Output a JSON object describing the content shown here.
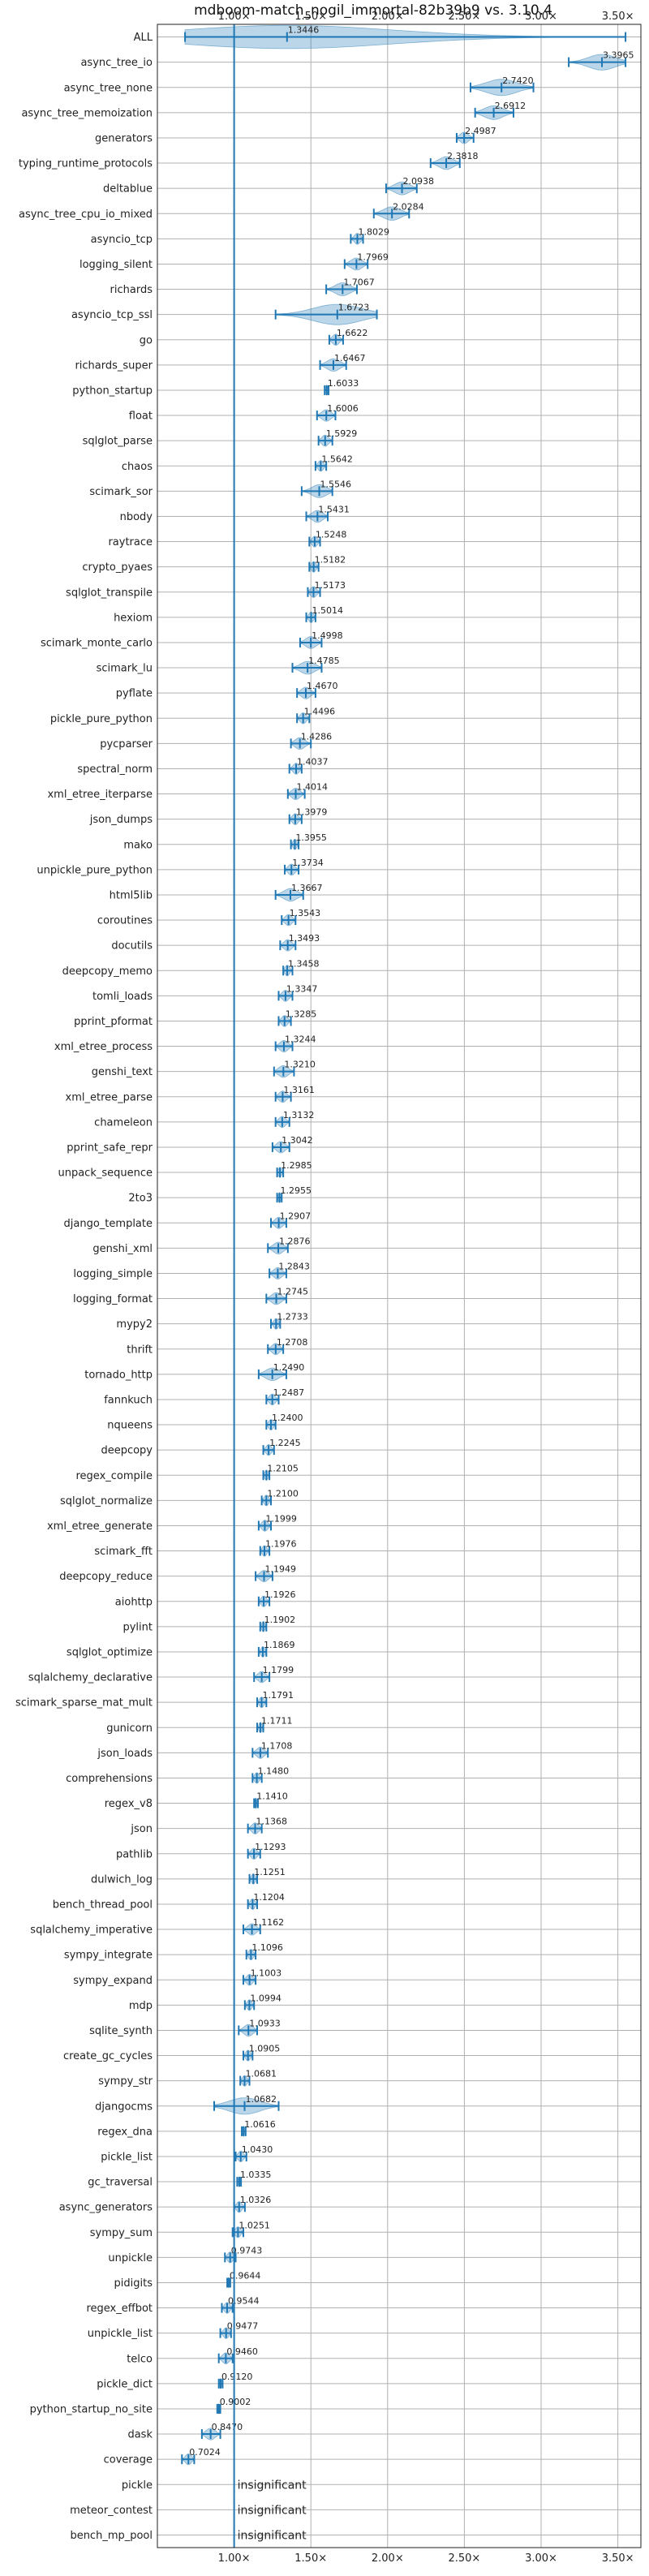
{
  "chart_data": {
    "type": "violin",
    "title": "mdboom-match_nogil_immortal-82b39b9 vs. 3.10.4",
    "xlim": [
      0.5,
      3.65
    ],
    "x_ticks": [
      1.0,
      1.5,
      2.0,
      2.5,
      3.0,
      3.5
    ],
    "x_tick_labels": [
      "1.00×",
      "1.50×",
      "2.00×",
      "2.50×",
      "3.00×",
      "3.50×"
    ],
    "reference_line": 1.0,
    "grid": true,
    "insignificant_label": "insignificant",
    "benchmarks": [
      {
        "name": "ALL",
        "value": 1.3446,
        "label": "1.3446",
        "min": 0.68,
        "max": 3.55
      },
      {
        "name": "async_tree_io",
        "value": 3.3965,
        "label": "3.3965",
        "min": 3.18,
        "max": 3.55
      },
      {
        "name": "async_tree_none",
        "value": 2.742,
        "label": "2.7420",
        "min": 2.54,
        "max": 2.95
      },
      {
        "name": "async_tree_memoization",
        "value": 2.6912,
        "label": "2.6912",
        "min": 2.57,
        "max": 2.82
      },
      {
        "name": "generators",
        "value": 2.4987,
        "label": "2.4987",
        "min": 2.45,
        "max": 2.56
      },
      {
        "name": "typing_runtime_protocols",
        "value": 2.3818,
        "label": "2.3818",
        "min": 2.28,
        "max": 2.47
      },
      {
        "name": "deltablue",
        "value": 2.0938,
        "label": "2.0938",
        "min": 1.99,
        "max": 2.19
      },
      {
        "name": "async_tree_cpu_io_mixed",
        "value": 2.0284,
        "label": "2.0284",
        "min": 1.91,
        "max": 2.14
      },
      {
        "name": "asyncio_tcp",
        "value": 1.8029,
        "label": "1.8029",
        "min": 1.76,
        "max": 1.84
      },
      {
        "name": "logging_silent",
        "value": 1.7969,
        "label": "1.7969",
        "min": 1.72,
        "max": 1.87
      },
      {
        "name": "richards",
        "value": 1.7067,
        "label": "1.7067",
        "min": 1.6,
        "max": 1.8
      },
      {
        "name": "asyncio_tcp_ssl",
        "value": 1.6723,
        "label": "1.6723",
        "min": 1.27,
        "max": 1.93
      },
      {
        "name": "go",
        "value": 1.6622,
        "label": "1.6622",
        "min": 1.62,
        "max": 1.71
      },
      {
        "name": "richards_super",
        "value": 1.6467,
        "label": "1.6467",
        "min": 1.56,
        "max": 1.73
      },
      {
        "name": "python_startup",
        "value": 1.6033,
        "label": "1.6033",
        "min": 1.59,
        "max": 1.615
      },
      {
        "name": "float",
        "value": 1.6006,
        "label": "1.6006",
        "min": 1.54,
        "max": 1.66
      },
      {
        "name": "sqlglot_parse",
        "value": 1.5929,
        "label": "1.5929",
        "min": 1.55,
        "max": 1.64
      },
      {
        "name": "chaos",
        "value": 1.5642,
        "label": "1.5642",
        "min": 1.53,
        "max": 1.6
      },
      {
        "name": "scimark_sor",
        "value": 1.5546,
        "label": "1.5546",
        "min": 1.44,
        "max": 1.64
      },
      {
        "name": "nbody",
        "value": 1.5431,
        "label": "1.5431",
        "min": 1.47,
        "max": 1.61
      },
      {
        "name": "raytrace",
        "value": 1.5248,
        "label": "1.5248",
        "min": 1.49,
        "max": 1.56
      },
      {
        "name": "crypto_pyaes",
        "value": 1.5182,
        "label": "1.5182",
        "min": 1.49,
        "max": 1.55
      },
      {
        "name": "sqlglot_transpile",
        "value": 1.5173,
        "label": "1.5173",
        "min": 1.48,
        "max": 1.56
      },
      {
        "name": "hexiom",
        "value": 1.5014,
        "label": "1.5014",
        "min": 1.47,
        "max": 1.53
      },
      {
        "name": "scimark_monte_carlo",
        "value": 1.4998,
        "label": "1.4998",
        "min": 1.43,
        "max": 1.57
      },
      {
        "name": "scimark_lu",
        "value": 1.4785,
        "label": "1.4785",
        "min": 1.38,
        "max": 1.57
      },
      {
        "name": "pyflate",
        "value": 1.467,
        "label": "1.4670",
        "min": 1.41,
        "max": 1.53
      },
      {
        "name": "pickle_pure_python",
        "value": 1.4496,
        "label": "1.4496",
        "min": 1.41,
        "max": 1.49
      },
      {
        "name": "pycparser",
        "value": 1.4286,
        "label": "1.4286",
        "min": 1.37,
        "max": 1.5
      },
      {
        "name": "spectral_norm",
        "value": 1.4037,
        "label": "1.4037",
        "min": 1.36,
        "max": 1.44
      },
      {
        "name": "xml_etree_iterparse",
        "value": 1.4014,
        "label": "1.4014",
        "min": 1.35,
        "max": 1.46
      },
      {
        "name": "json_dumps",
        "value": 1.3979,
        "label": "1.3979",
        "min": 1.36,
        "max": 1.44
      },
      {
        "name": "mako",
        "value": 1.3955,
        "label": "1.3955",
        "min": 1.37,
        "max": 1.42
      },
      {
        "name": "unpickle_pure_python",
        "value": 1.3734,
        "label": "1.3734",
        "min": 1.33,
        "max": 1.42
      },
      {
        "name": "html5lib",
        "value": 1.3667,
        "label": "1.3667",
        "min": 1.27,
        "max": 1.45
      },
      {
        "name": "coroutines",
        "value": 1.3543,
        "label": "1.3543",
        "min": 1.31,
        "max": 1.4
      },
      {
        "name": "docutils",
        "value": 1.3493,
        "label": "1.3493",
        "min": 1.3,
        "max": 1.4
      },
      {
        "name": "deepcopy_memo",
        "value": 1.3458,
        "label": "1.3458",
        "min": 1.32,
        "max": 1.38
      },
      {
        "name": "tomli_loads",
        "value": 1.3347,
        "label": "1.3347",
        "min": 1.29,
        "max": 1.38
      },
      {
        "name": "pprint_pformat",
        "value": 1.3285,
        "label": "1.3285",
        "min": 1.29,
        "max": 1.37
      },
      {
        "name": "xml_etree_process",
        "value": 1.3244,
        "label": "1.3244",
        "min": 1.27,
        "max": 1.38
      },
      {
        "name": "genshi_text",
        "value": 1.321,
        "label": "1.3210",
        "min": 1.26,
        "max": 1.39
      },
      {
        "name": "xml_etree_parse",
        "value": 1.3161,
        "label": "1.3161",
        "min": 1.27,
        "max": 1.37
      },
      {
        "name": "chameleon",
        "value": 1.3132,
        "label": "1.3132",
        "min": 1.27,
        "max": 1.36
      },
      {
        "name": "pprint_safe_repr",
        "value": 1.3042,
        "label": "1.3042",
        "min": 1.25,
        "max": 1.36
      },
      {
        "name": "unpack_sequence",
        "value": 1.2985,
        "label": "1.2985",
        "min": 1.28,
        "max": 1.32
      },
      {
        "name": "2to3",
        "value": 1.2955,
        "label": "1.2955",
        "min": 1.28,
        "max": 1.31
      },
      {
        "name": "django_template",
        "value": 1.2907,
        "label": "1.2907",
        "min": 1.24,
        "max": 1.34
      },
      {
        "name": "genshi_xml",
        "value": 1.2876,
        "label": "1.2876",
        "min": 1.22,
        "max": 1.35
      },
      {
        "name": "logging_simple",
        "value": 1.2843,
        "label": "1.2843",
        "min": 1.23,
        "max": 1.34
      },
      {
        "name": "logging_format",
        "value": 1.2745,
        "label": "1.2745",
        "min": 1.21,
        "max": 1.34
      },
      {
        "name": "mypy2",
        "value": 1.2733,
        "label": "1.2733",
        "min": 1.24,
        "max": 1.3
      },
      {
        "name": "thrift",
        "value": 1.2708,
        "label": "1.2708",
        "min": 1.22,
        "max": 1.32
      },
      {
        "name": "tornado_http",
        "value": 1.249,
        "label": "1.2490",
        "min": 1.16,
        "max": 1.34
      },
      {
        "name": "fannkuch",
        "value": 1.2487,
        "label": "1.2487",
        "min": 1.21,
        "max": 1.29
      },
      {
        "name": "nqueens",
        "value": 1.24,
        "label": "1.2400",
        "min": 1.21,
        "max": 1.27
      },
      {
        "name": "deepcopy",
        "value": 1.2245,
        "label": "1.2245",
        "min": 1.19,
        "max": 1.26
      },
      {
        "name": "regex_compile",
        "value": 1.2105,
        "label": "1.2105",
        "min": 1.19,
        "max": 1.23
      },
      {
        "name": "sqlglot_normalize",
        "value": 1.21,
        "label": "1.2100",
        "min": 1.18,
        "max": 1.24
      },
      {
        "name": "xml_etree_generate",
        "value": 1.1999,
        "label": "1.1999",
        "min": 1.16,
        "max": 1.24
      },
      {
        "name": "scimark_fft",
        "value": 1.1976,
        "label": "1.1976",
        "min": 1.17,
        "max": 1.23
      },
      {
        "name": "deepcopy_reduce",
        "value": 1.1949,
        "label": "1.1949",
        "min": 1.14,
        "max": 1.25
      },
      {
        "name": "aiohttp",
        "value": 1.1926,
        "label": "1.1926",
        "min": 1.16,
        "max": 1.23
      },
      {
        "name": "pylint",
        "value": 1.1902,
        "label": "1.1902",
        "min": 1.17,
        "max": 1.21
      },
      {
        "name": "sqlglot_optimize",
        "value": 1.1869,
        "label": "1.1869",
        "min": 1.16,
        "max": 1.21
      },
      {
        "name": "sqlalchemy_declarative",
        "value": 1.1799,
        "label": "1.1799",
        "min": 1.13,
        "max": 1.23
      },
      {
        "name": "scimark_sparse_mat_mult",
        "value": 1.1791,
        "label": "1.1791",
        "min": 1.15,
        "max": 1.21
      },
      {
        "name": "gunicorn",
        "value": 1.1711,
        "label": "1.1711",
        "min": 1.15,
        "max": 1.19
      },
      {
        "name": "json_loads",
        "value": 1.1708,
        "label": "1.1708",
        "min": 1.12,
        "max": 1.22
      },
      {
        "name": "comprehensions",
        "value": 1.148,
        "label": "1.1480",
        "min": 1.12,
        "max": 1.18
      },
      {
        "name": "regex_v8",
        "value": 1.141,
        "label": "1.1410",
        "min": 1.13,
        "max": 1.155
      },
      {
        "name": "json",
        "value": 1.1368,
        "label": "1.1368",
        "min": 1.09,
        "max": 1.18
      },
      {
        "name": "pathlib",
        "value": 1.1293,
        "label": "1.1293",
        "min": 1.09,
        "max": 1.17
      },
      {
        "name": "dulwich_log",
        "value": 1.1251,
        "label": "1.1251",
        "min": 1.1,
        "max": 1.15
      },
      {
        "name": "bench_thread_pool",
        "value": 1.1204,
        "label": "1.1204",
        "min": 1.09,
        "max": 1.15
      },
      {
        "name": "sqlalchemy_imperative",
        "value": 1.1162,
        "label": "1.1162",
        "min": 1.06,
        "max": 1.17
      },
      {
        "name": "sympy_integrate",
        "value": 1.1096,
        "label": "1.1096",
        "min": 1.08,
        "max": 1.14
      },
      {
        "name": "sympy_expand",
        "value": 1.1003,
        "label": "1.1003",
        "min": 1.06,
        "max": 1.14
      },
      {
        "name": "mdp",
        "value": 1.0994,
        "label": "1.0994",
        "min": 1.07,
        "max": 1.13
      },
      {
        "name": "sqlite_synth",
        "value": 1.0933,
        "label": "1.0933",
        "min": 1.03,
        "max": 1.15
      },
      {
        "name": "create_gc_cycles",
        "value": 1.0905,
        "label": "1.0905",
        "min": 1.06,
        "max": 1.12
      },
      {
        "name": "sympy_str",
        "value": 1.0681,
        "label": "1.0681",
        "min": 1.04,
        "max": 1.1
      },
      {
        "name": "djangocms",
        "value": 1.0682,
        "label": "1.0682",
        "min": 0.87,
        "max": 1.29
      },
      {
        "name": "regex_dna",
        "value": 1.0616,
        "label": "1.0616",
        "min": 1.05,
        "max": 1.075
      },
      {
        "name": "pickle_list",
        "value": 1.043,
        "label": "1.0430",
        "min": 1.01,
        "max": 1.08
      },
      {
        "name": "gc_traversal",
        "value": 1.0335,
        "label": "1.0335",
        "min": 1.02,
        "max": 1.045
      },
      {
        "name": "async_generators",
        "value": 1.0326,
        "label": "1.0326",
        "min": 1.0,
        "max": 1.07
      },
      {
        "name": "sympy_sum",
        "value": 1.0251,
        "label": "1.0251",
        "min": 0.99,
        "max": 1.06
      },
      {
        "name": "unpickle",
        "value": 0.9743,
        "label": "0.9743",
        "min": 0.94,
        "max": 1.01
      },
      {
        "name": "pidigits",
        "value": 0.9644,
        "label": "0.9644",
        "min": 0.955,
        "max": 0.975
      },
      {
        "name": "regex_effbot",
        "value": 0.9544,
        "label": "0.9544",
        "min": 0.92,
        "max": 0.99
      },
      {
        "name": "unpickle_list",
        "value": 0.9477,
        "label": "0.9477",
        "min": 0.91,
        "max": 0.98
      },
      {
        "name": "telco",
        "value": 0.946,
        "label": "0.9460",
        "min": 0.9,
        "max": 0.99
      },
      {
        "name": "pickle_dict",
        "value": 0.912,
        "label": "0.9120",
        "min": 0.9,
        "max": 0.925
      },
      {
        "name": "python_startup_no_site",
        "value": 0.9002,
        "label": "0.9002",
        "min": 0.89,
        "max": 0.91
      },
      {
        "name": "dask",
        "value": 0.847,
        "label": "0.8470",
        "min": 0.79,
        "max": 0.91
      },
      {
        "name": "coverage",
        "value": 0.7024,
        "label": "0.7024",
        "min": 0.66,
        "max": 0.74
      },
      {
        "name": "pickle",
        "value": null,
        "label": "insignificant"
      },
      {
        "name": "meteor_contest",
        "value": null,
        "label": "insignificant"
      },
      {
        "name": "bench_mp_pool",
        "value": null,
        "label": "insignificant"
      }
    ]
  }
}
